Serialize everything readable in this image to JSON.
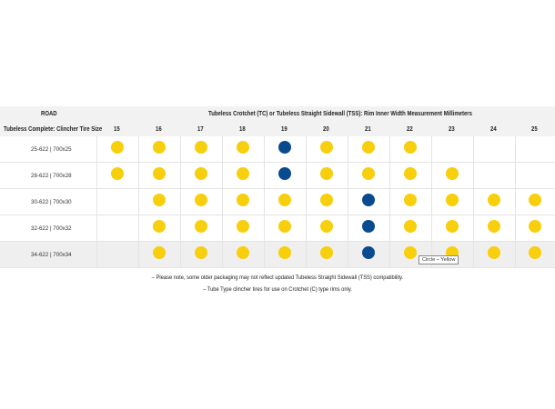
{
  "colors": {
    "yellow": "#f7cf0c",
    "blue": "#0a4a8f",
    "band": "#f2f2f2"
  },
  "header": {
    "category": "ROAD",
    "title": "Tubeless Crotchet (TC) or Tubeless Straight Sidewall (TSS): Rim Inner Width Measurement Millimeters",
    "size_col": "Tubeless Complete: Clincher Tire Size"
  },
  "widths": [
    "15",
    "16",
    "17",
    "18",
    "19",
    "20",
    "21",
    "22",
    "23",
    "24",
    "25"
  ],
  "rows": [
    {
      "size": "25-622 | 700x25",
      "marks": [
        "Y",
        "Y",
        "Y",
        "Y",
        "B",
        "Y",
        "Y",
        "Y",
        "",
        "",
        ""
      ]
    },
    {
      "size": "28-622 | 700x28",
      "marks": [
        "Y",
        "Y",
        "Y",
        "Y",
        "B",
        "Y",
        "Y",
        "Y",
        "Y",
        "",
        ""
      ]
    },
    {
      "size": "30-622 | 700x30",
      "marks": [
        "",
        "Y",
        "Y",
        "Y",
        "Y",
        "Y",
        "B",
        "Y",
        "Y",
        "Y",
        "Y"
      ]
    },
    {
      "size": "32-622 | 700x32",
      "marks": [
        "",
        "Y",
        "Y",
        "Y",
        "Y",
        "Y",
        "B",
        "Y",
        "Y",
        "Y",
        "Y"
      ]
    },
    {
      "size": "34-622 | 700x34",
      "marks": [
        "",
        "Y",
        "Y",
        "Y",
        "Y",
        "Y",
        "B",
        "Y",
        "Y",
        "Y",
        "Y"
      ]
    }
  ],
  "shaded_row": 4,
  "tooltip": "Circle – Yellow",
  "notes": [
    "– Please note, some older packaging may not reflect updated Tubeless Straight Sidewall (TSS) compatibility.",
    "– Tube Type clincher tires for use on Crotchet (C) type rims only."
  ]
}
